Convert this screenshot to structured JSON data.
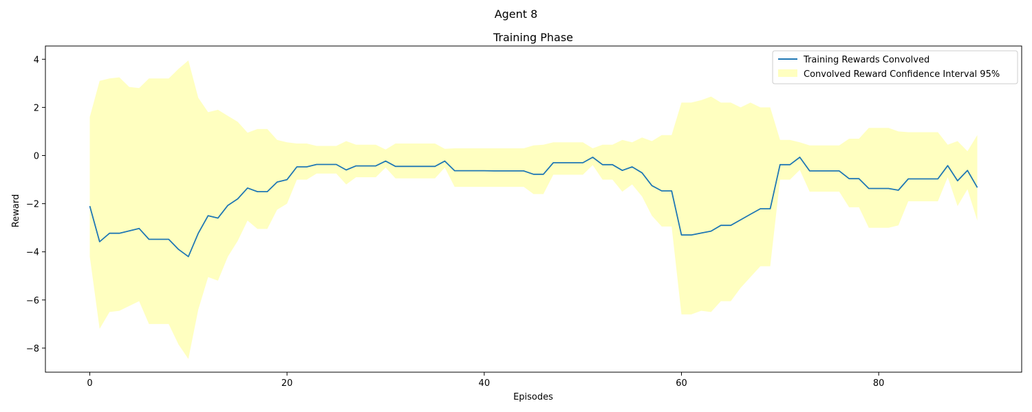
{
  "figure": {
    "suptitle": "Agent 8"
  },
  "chart_data": {
    "type": "line",
    "title": "Training Phase",
    "xlabel": "Episodes",
    "ylabel": "Reward",
    "xlim": [
      -4.5,
      94.5
    ],
    "ylim": [
      -9,
      4.55
    ],
    "xticks": [
      0,
      20,
      40,
      60,
      80
    ],
    "yticks": [
      -8,
      -6,
      -4,
      -2,
      0,
      2,
      4
    ],
    "tick_labels_x": [
      "0",
      "20",
      "40",
      "60",
      "80"
    ],
    "tick_labels_y": [
      "−8",
      "−6",
      "−4",
      "−2",
      "0",
      "2",
      "4"
    ],
    "grid": false,
    "legend_position": "top-right",
    "line_color": "#1f77b4",
    "band_color": "#ffffc0",
    "series": [
      {
        "name": "Training Rewards Convolved",
        "kind": "line",
        "x": [
          0,
          1,
          2,
          3,
          4,
          5,
          6,
          7,
          8,
          9,
          10,
          11,
          12,
          13,
          14,
          15,
          16,
          17,
          18,
          19,
          20,
          21,
          22,
          23,
          24,
          25,
          26,
          27,
          28,
          29,
          30,
          31,
          32,
          33,
          34,
          35,
          36,
          37,
          38,
          39,
          40,
          41,
          42,
          43,
          44,
          45,
          46,
          47,
          48,
          49,
          50,
          51,
          52,
          53,
          54,
          55,
          56,
          57,
          58,
          59,
          60,
          61,
          62,
          63,
          64,
          65,
          66,
          67,
          68,
          69,
          70,
          71,
          72,
          73,
          74,
          75,
          76,
          77,
          78,
          79,
          80,
          81,
          82,
          83,
          84,
          85,
          86,
          87,
          88,
          89,
          90
        ],
        "y": [
          -2.1,
          -3.58,
          -3.23,
          -3.23,
          -3.13,
          -3.03,
          -3.48,
          -3.48,
          -3.48,
          -3.9,
          -4.2,
          -3.23,
          -2.5,
          -2.6,
          -2.07,
          -1.8,
          -1.35,
          -1.5,
          -1.5,
          -1.1,
          -1.0,
          -0.47,
          -0.47,
          -0.37,
          -0.37,
          -0.37,
          -0.6,
          -0.43,
          -0.43,
          -0.43,
          -0.23,
          -0.45,
          -0.45,
          -0.45,
          -0.45,
          -0.45,
          -0.23,
          -0.63,
          -0.63,
          -0.63,
          -0.63,
          -0.64,
          -0.64,
          -0.64,
          -0.64,
          -0.78,
          -0.78,
          -0.3,
          -0.3,
          -0.3,
          -0.3,
          -0.07,
          -0.38,
          -0.38,
          -0.62,
          -0.47,
          -0.72,
          -1.25,
          -1.47,
          -1.47,
          -3.3,
          -3.3,
          -3.22,
          -3.14,
          -2.9,
          -2.9,
          -2.67,
          -2.44,
          -2.21,
          -2.21,
          -0.38,
          -0.38,
          -0.07,
          -0.64,
          -0.64,
          -0.64,
          -0.64,
          -0.96,
          -0.96,
          -1.37,
          -1.37,
          -1.37,
          -1.44,
          -0.97,
          -0.97,
          -0.97,
          -0.97,
          -0.42,
          -1.05,
          -0.62,
          -1.33
        ]
      },
      {
        "name": "Convolved Reward Confidence Interval 95%",
        "kind": "band",
        "x": [
          0,
          1,
          2,
          3,
          4,
          5,
          6,
          7,
          8,
          9,
          10,
          11,
          12,
          13,
          14,
          15,
          16,
          17,
          18,
          19,
          20,
          21,
          22,
          23,
          24,
          25,
          26,
          27,
          28,
          29,
          30,
          31,
          32,
          33,
          34,
          35,
          36,
          37,
          38,
          39,
          40,
          41,
          42,
          43,
          44,
          45,
          46,
          47,
          48,
          49,
          50,
          51,
          52,
          53,
          54,
          55,
          56,
          57,
          58,
          59,
          60,
          61,
          62,
          63,
          64,
          65,
          66,
          67,
          68,
          69,
          70,
          71,
          72,
          73,
          74,
          75,
          76,
          77,
          78,
          79,
          80,
          81,
          82,
          83,
          84,
          85,
          86,
          87,
          88,
          89,
          90
        ],
        "upper": [
          1.6,
          3.1,
          3.2,
          3.25,
          2.85,
          2.8,
          3.2,
          3.2,
          3.2,
          3.6,
          3.95,
          2.4,
          1.8,
          1.9,
          1.65,
          1.4,
          0.95,
          1.1,
          1.1,
          0.65,
          0.55,
          0.5,
          0.5,
          0.4,
          0.4,
          0.4,
          0.6,
          0.45,
          0.45,
          0.45,
          0.25,
          0.5,
          0.5,
          0.5,
          0.5,
          0.5,
          0.28,
          0.3,
          0.3,
          0.3,
          0.3,
          0.3,
          0.3,
          0.3,
          0.3,
          0.42,
          0.45,
          0.55,
          0.55,
          0.55,
          0.55,
          0.3,
          0.45,
          0.45,
          0.65,
          0.55,
          0.75,
          0.6,
          0.85,
          0.85,
          2.2,
          2.2,
          2.3,
          2.45,
          2.2,
          2.2,
          2.0,
          2.2,
          2.0,
          2.0,
          0.65,
          0.65,
          0.55,
          0.42,
          0.42,
          0.42,
          0.42,
          0.7,
          0.7,
          1.15,
          1.15,
          1.15,
          1.0,
          0.97,
          0.97,
          0.97,
          0.97,
          0.45,
          0.6,
          0.18,
          0.85
        ],
        "lower": [
          -4.2,
          -7.2,
          -6.5,
          -6.45,
          -6.25,
          -6.05,
          -7.0,
          -7.0,
          -7.0,
          -7.85,
          -8.45,
          -6.4,
          -5.05,
          -5.2,
          -4.2,
          -3.55,
          -2.7,
          -3.05,
          -3.05,
          -2.25,
          -2.0,
          -1.0,
          -1.0,
          -0.75,
          -0.75,
          -0.75,
          -1.2,
          -0.9,
          -0.9,
          -0.9,
          -0.5,
          -0.95,
          -0.95,
          -0.95,
          -0.95,
          -0.95,
          -0.5,
          -1.3,
          -1.3,
          -1.3,
          -1.3,
          -1.3,
          -1.3,
          -1.3,
          -1.3,
          -1.6,
          -1.6,
          -0.8,
          -0.8,
          -0.8,
          -0.8,
          -0.4,
          -1.0,
          -1.0,
          -1.5,
          -1.2,
          -1.7,
          -2.5,
          -2.95,
          -2.95,
          -6.6,
          -6.6,
          -6.45,
          -6.5,
          -6.05,
          -6.05,
          -5.5,
          -5.05,
          -4.6,
          -4.6,
          -1.0,
          -1.0,
          -0.6,
          -1.5,
          -1.5,
          -1.5,
          -1.5,
          -2.15,
          -2.15,
          -3.0,
          -3.0,
          -3.0,
          -2.9,
          -1.9,
          -1.9,
          -1.9,
          -1.9,
          -0.9,
          -2.1,
          -1.4,
          -2.7
        ]
      }
    ]
  }
}
